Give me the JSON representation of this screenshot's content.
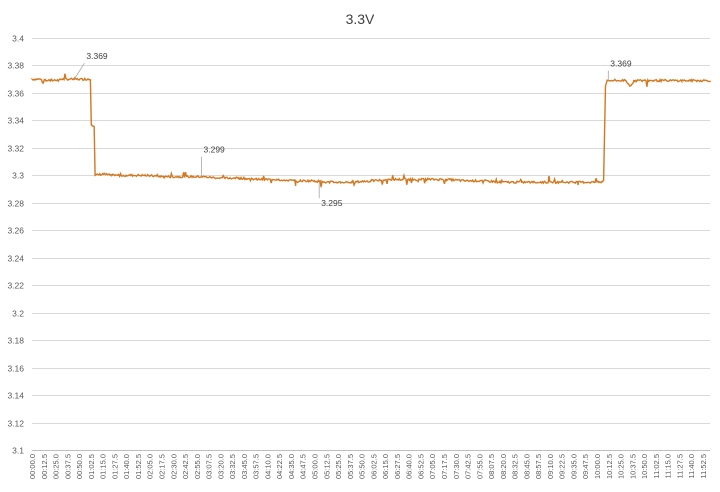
{
  "chart_data": {
    "type": "line",
    "title": "3.3V",
    "xlabel": "",
    "ylabel": "",
    "ylim": [
      3.1,
      3.4
    ],
    "y_ticks": [
      "3.4",
      "3.38",
      "3.36",
      "3.34",
      "3.32",
      "3.3",
      "3.28",
      "3.26",
      "3.24",
      "3.22",
      "3.2",
      "3.18",
      "3.16",
      "3.14",
      "3.12",
      "3.1"
    ],
    "grid": true,
    "legend": "none",
    "series_color": "#d4781f",
    "x_tick_labels": [
      "00:00.0",
      "00:12.5",
      "00:25.0",
      "00:37.5",
      "00:50.0",
      "01:02.5",
      "01:15.0",
      "01:27.5",
      "01:40.0",
      "01:52.5",
      "02:05.0",
      "02:17.5",
      "02:30.0",
      "02:42.5",
      "02:55.0",
      "03:07.5",
      "03:20.0",
      "03:32.5",
      "03:45.0",
      "03:57.5",
      "04:10.0",
      "04:22.5",
      "04:35.0",
      "04:47.5",
      "05:00.0",
      "05:12.5",
      "05:25.0",
      "05:37.5",
      "05:50.0",
      "06:02.5",
      "06:15.0",
      "06:27.5",
      "06:40.0",
      "06:52.5",
      "07:05.0",
      "07:17.5",
      "07:30.0",
      "07:42.5",
      "07:55.0",
      "08:07.5",
      "08:20.0",
      "08:32.5",
      "08:45.0",
      "08:57.5",
      "09:10.0",
      "09:22.5",
      "09:35.0",
      "09:47.5",
      "10:00.0",
      "10:12.5",
      "10:25.0",
      "10:37.5",
      "10:50.0",
      "11:02.5",
      "11:15.0",
      "11:27.5",
      "11:40.0",
      "11:52.5"
    ],
    "x_range_seconds": [
      0,
      720
    ],
    "series": [
      {
        "points": [
          [
            0,
            3.37
          ],
          [
            10,
            3.37
          ],
          [
            20,
            3.369
          ],
          [
            30,
            3.37
          ],
          [
            45,
            3.37
          ],
          [
            60,
            3.37
          ],
          [
            62,
            3.37
          ],
          [
            63,
            3.337
          ],
          [
            66,
            3.336
          ],
          [
            67,
            3.3
          ],
          [
            75,
            3.301
          ],
          [
            85,
            3.3
          ],
          [
            100,
            3.3
          ],
          [
            120,
            3.3
          ],
          [
            140,
            3.299
          ],
          [
            160,
            3.299
          ],
          [
            180,
            3.299
          ],
          [
            200,
            3.298
          ],
          [
            210,
            3.298
          ],
          [
            220,
            3.298
          ],
          [
            240,
            3.297
          ],
          [
            260,
            3.297
          ],
          [
            280,
            3.296
          ],
          [
            300,
            3.296
          ],
          [
            310,
            3.295
          ],
          [
            320,
            3.295
          ],
          [
            340,
            3.295
          ],
          [
            360,
            3.296
          ],
          [
            380,
            3.297
          ],
          [
            400,
            3.297
          ],
          [
            420,
            3.297
          ],
          [
            440,
            3.297
          ],
          [
            460,
            3.296
          ],
          [
            480,
            3.296
          ],
          [
            500,
            3.295
          ],
          [
            520,
            3.295
          ],
          [
            540,
            3.295
          ],
          [
            560,
            3.295
          ],
          [
            580,
            3.295
          ],
          [
            600,
            3.295
          ],
          [
            605,
            3.295
          ],
          [
            607,
            3.296
          ],
          [
            609,
            3.365
          ],
          [
            611,
            3.369
          ],
          [
            620,
            3.369
          ],
          [
            630,
            3.369
          ],
          [
            635,
            3.365
          ],
          [
            640,
            3.369
          ],
          [
            660,
            3.369
          ],
          [
            690,
            3.369
          ],
          [
            720,
            3.369
          ]
        ]
      }
    ],
    "annotations": [
      {
        "label": "3.369",
        "x": 45,
        "y": 3.37
      },
      {
        "label": "3.299",
        "x": 180,
        "y": 3.299
      },
      {
        "label": "3.295",
        "x": 305,
        "y": 3.295
      },
      {
        "label": "3.369",
        "x": 612,
        "y": 3.369
      }
    ]
  }
}
